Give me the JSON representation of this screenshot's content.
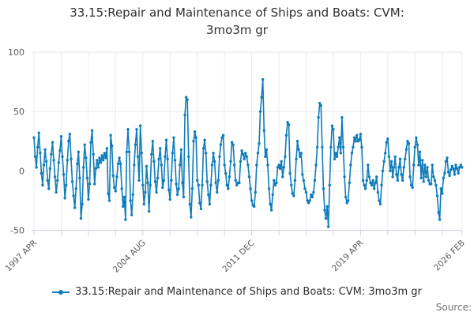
{
  "chart": {
    "title_line1": "33.15:Repair and Maintenance of Ships and Boats: CVM:",
    "title_line2": "3mo3m gr"
  },
  "legend": {
    "label": "33.15:Repair and Maintenance of Ships and Boats: CVM: 3mo3m gr"
  },
  "footer": {
    "source": "Source:"
  },
  "chart_data": {
    "type": "line",
    "title": "33.15:Repair and Maintenance of Ships and Boats: CVM: 3mo3m gr",
    "x_unit": "month",
    "x_start_label": "1997 APR",
    "x_end_label": "2026 FEB",
    "x_major_ticks": [
      {
        "month": 0,
        "label": "1997 APR"
      },
      {
        "month": 88,
        "label": "2004 AUG"
      },
      {
        "month": 176,
        "label": "2011 DEC"
      },
      {
        "month": 264,
        "label": "2019 APR"
      },
      {
        "month": 346,
        "label": "2026 FEB"
      }
    ],
    "x_minor_tick_every_months": 22,
    "n_points": 347,
    "ylim": [
      -50,
      100
    ],
    "y_ticks": [
      100,
      50,
      0,
      -50
    ],
    "grid": true,
    "legend_position": "bottom",
    "colors": {
      "line": "#0f7cba",
      "grid_h": "#e6e6e6",
      "grid_v": "#ededed",
      "axis": "#c9d2dc",
      "tick_label": "#595959",
      "title": "#303030",
      "source": "#707070"
    },
    "values": [
      28,
      12,
      3,
      20,
      32,
      15,
      -2,
      -12,
      5,
      18,
      8,
      -8,
      -15,
      2,
      14,
      24,
      9,
      -5,
      -18,
      -8,
      7,
      17,
      29,
      12,
      -3,
      -23,
      -12,
      9,
      25,
      31,
      10,
      -9,
      -21,
      -31,
      -15,
      6,
      16,
      -6,
      -40,
      -28,
      3,
      22,
      11,
      -6,
      -24,
      -11,
      24,
      34,
      14,
      -11,
      2,
      9,
      3,
      11,
      7,
      13,
      9,
      15,
      11,
      19,
      -19,
      -25,
      30,
      21,
      -4,
      -14,
      -17,
      -5,
      6,
      11,
      6,
      -15,
      -30,
      -22,
      -41,
      16,
      35,
      16,
      -25,
      -37,
      -20,
      5,
      22,
      35,
      12,
      -8,
      38,
      15,
      -12,
      -28,
      -18,
      4,
      -10,
      -34,
      -12,
      14,
      25,
      8,
      -9,
      -18,
      -6,
      10,
      19,
      5,
      -14,
      -8,
      12,
      26,
      10,
      -16,
      -24,
      -8,
      15,
      28,
      9,
      -11,
      -20,
      -15,
      5,
      18,
      -10,
      -22,
      47,
      62,
      60,
      12,
      -28,
      -39,
      -15,
      25,
      33,
      28,
      -8,
      -12,
      -27,
      -32,
      -12,
      19,
      26,
      15,
      -9,
      -20,
      -28,
      -12,
      5,
      15,
      8,
      -10,
      -18,
      -8,
      12,
      22,
      28,
      30,
      5,
      -2,
      -12,
      -15,
      -5,
      8,
      24,
      22,
      5,
      -8,
      -12,
      -10,
      -10,
      8,
      17,
      14,
      10,
      15,
      12,
      5,
      -5,
      -15,
      -25,
      -29,
      -30,
      -18,
      5,
      15,
      23,
      50,
      62,
      77,
      34,
      12,
      18,
      5,
      -15,
      -28,
      -33,
      -20,
      -8,
      -12,
      -10,
      3,
      5,
      2,
      8,
      -5,
      3,
      12,
      30,
      41,
      39,
      -2,
      -12,
      -19,
      -21,
      -8,
      10,
      25,
      18,
      12,
      15,
      -3,
      -8,
      -15,
      -18,
      -25,
      -27,
      -25,
      -20,
      -22,
      -18,
      -8,
      5,
      20,
      45,
      57,
      55,
      20,
      -15,
      -33,
      -40,
      -30,
      -47,
      -12,
      20,
      38,
      35,
      10,
      15,
      12,
      20,
      28,
      15,
      45,
      20,
      -5,
      -22,
      -27,
      -25,
      -10,
      5,
      15,
      20,
      28,
      25,
      30,
      25,
      26,
      31,
      20,
      -8,
      -12,
      -15,
      -8,
      5,
      -5,
      -10,
      -12,
      -8,
      -15,
      -10,
      -5,
      -18,
      -25,
      -28,
      -12,
      0,
      8,
      15,
      24,
      27,
      12,
      0,
      8,
      -5,
      3,
      12,
      -3,
      -8,
      3,
      10,
      -3,
      -8,
      3,
      10,
      18,
      25,
      23,
      -5,
      -12,
      -14,
      5,
      20,
      28,
      22,
      5,
      16,
      -6,
      9,
      -9,
      5,
      -5,
      3,
      -8,
      -11,
      -11,
      5,
      -5,
      -8,
      -12,
      -21,
      -35,
      -41,
      -15,
      -19,
      -6,
      -2,
      8,
      11,
      -1,
      -4,
      1,
      4,
      2,
      -3,
      5,
      2,
      -2,
      3,
      5,
      3
    ]
  }
}
